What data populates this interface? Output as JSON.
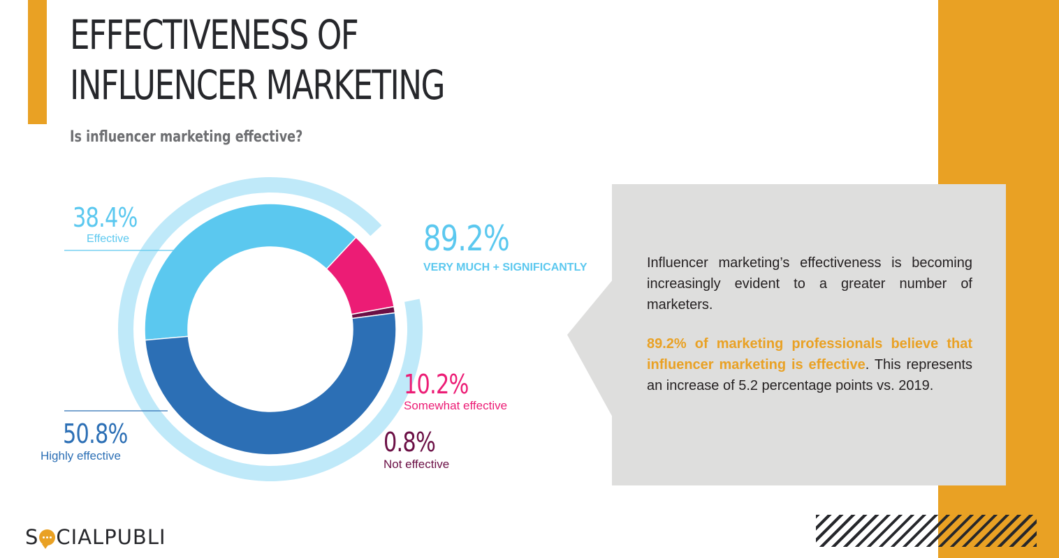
{
  "title_line1": "EFFECTIVENESS OF",
  "title_line2": "INFLUENCER MARKETING",
  "subtitle": "Is influencer marketing effective?",
  "colors": {
    "accent": "#E9A124",
    "effective": "#5bc8ef",
    "highly_effective": "#2c6fb5",
    "somewhat_effective": "#ec1c75",
    "not_effective": "#6b0f45",
    "total_ring": "#bfe9f9"
  },
  "chart_data": {
    "type": "pie",
    "style": "donut",
    "title": "Is influencer marketing effective?",
    "slices": [
      {
        "label": "Effective",
        "value_label": "38.4%",
        "value": 38.4
      },
      {
        "label": "Somewhat effective",
        "value_label": "10.2%",
        "value": 10.2
      },
      {
        "label": "Not effective",
        "value_label": "0.8%",
        "value": 0.8
      },
      {
        "label": "Highly effective",
        "value_label": "50.8%",
        "value": 50.8
      }
    ],
    "outer_ring": {
      "label": "VERY MUCH + SIGNIFICANTLY",
      "value_label": "89.2%",
      "value": 89.2
    }
  },
  "callout": {
    "paragraph1": "Influencer marketing’s effectiveness is becoming increasingly evident to a greater number of marketers.",
    "highlight": "89.2% of marketing professionals believe that influencer marketing is effective",
    "paragraph2_rest": ". This represents an increase of 5.2 percentage points vs. 2019."
  },
  "logo": {
    "before": "S",
    "after": "CIALPUBLI"
  }
}
